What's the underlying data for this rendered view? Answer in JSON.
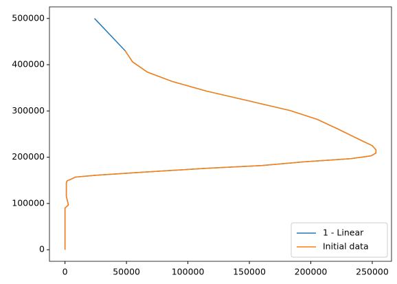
{
  "chart_data": {
    "type": "line",
    "series": [
      {
        "name": "1 - Linear",
        "color": "#1f77b4",
        "x": [
          0,
          0,
          2800,
          1100,
          1100,
          1700,
          4500,
          8400,
          25000,
          59000,
          115000,
          160000,
          194000,
          233000,
          249000,
          253000,
          253000,
          250000,
          239000,
          222000,
          205000,
          183000,
          154000,
          115000,
          87000,
          67000,
          55000,
          49000,
          24000
        ],
        "y": [
          0,
          90000,
          97000,
          115000,
          145000,
          149000,
          152000,
          157000,
          161000,
          167000,
          176000,
          182000,
          190000,
          197000,
          203000,
          209000,
          216000,
          225000,
          239000,
          261000,
          282000,
          301000,
          319000,
          343000,
          364000,
          384000,
          406000,
          430000,
          500000
        ]
      },
      {
        "name": "Initial data",
        "color": "#ff7f0e",
        "x": [
          0,
          0,
          2800,
          1100,
          1100,
          1700,
          4500,
          8400,
          25000,
          59000,
          115000,
          160000,
          194000,
          233000,
          249000,
          253000,
          253000,
          250000,
          239000,
          222000,
          205000,
          183000,
          154000,
          115000,
          87000,
          67000,
          55000,
          49000
        ],
        "y": [
          0,
          90000,
          97000,
          115000,
          145000,
          149000,
          152000,
          157000,
          161000,
          167000,
          176000,
          182000,
          190000,
          197000,
          203000,
          209000,
          216000,
          225000,
          239000,
          261000,
          282000,
          301000,
          319000,
          343000,
          364000,
          384000,
          406000,
          430000
        ]
      }
    ],
    "xlim": [
      -12650,
      265650
    ],
    "xticks": [
      0,
      50000,
      100000,
      150000,
      200000,
      250000
    ],
    "ylim": [
      -25000,
      525000
    ],
    "yticks": [
      0,
      100000,
      200000,
      300000,
      400000,
      500000
    ],
    "legend": "lower right"
  }
}
